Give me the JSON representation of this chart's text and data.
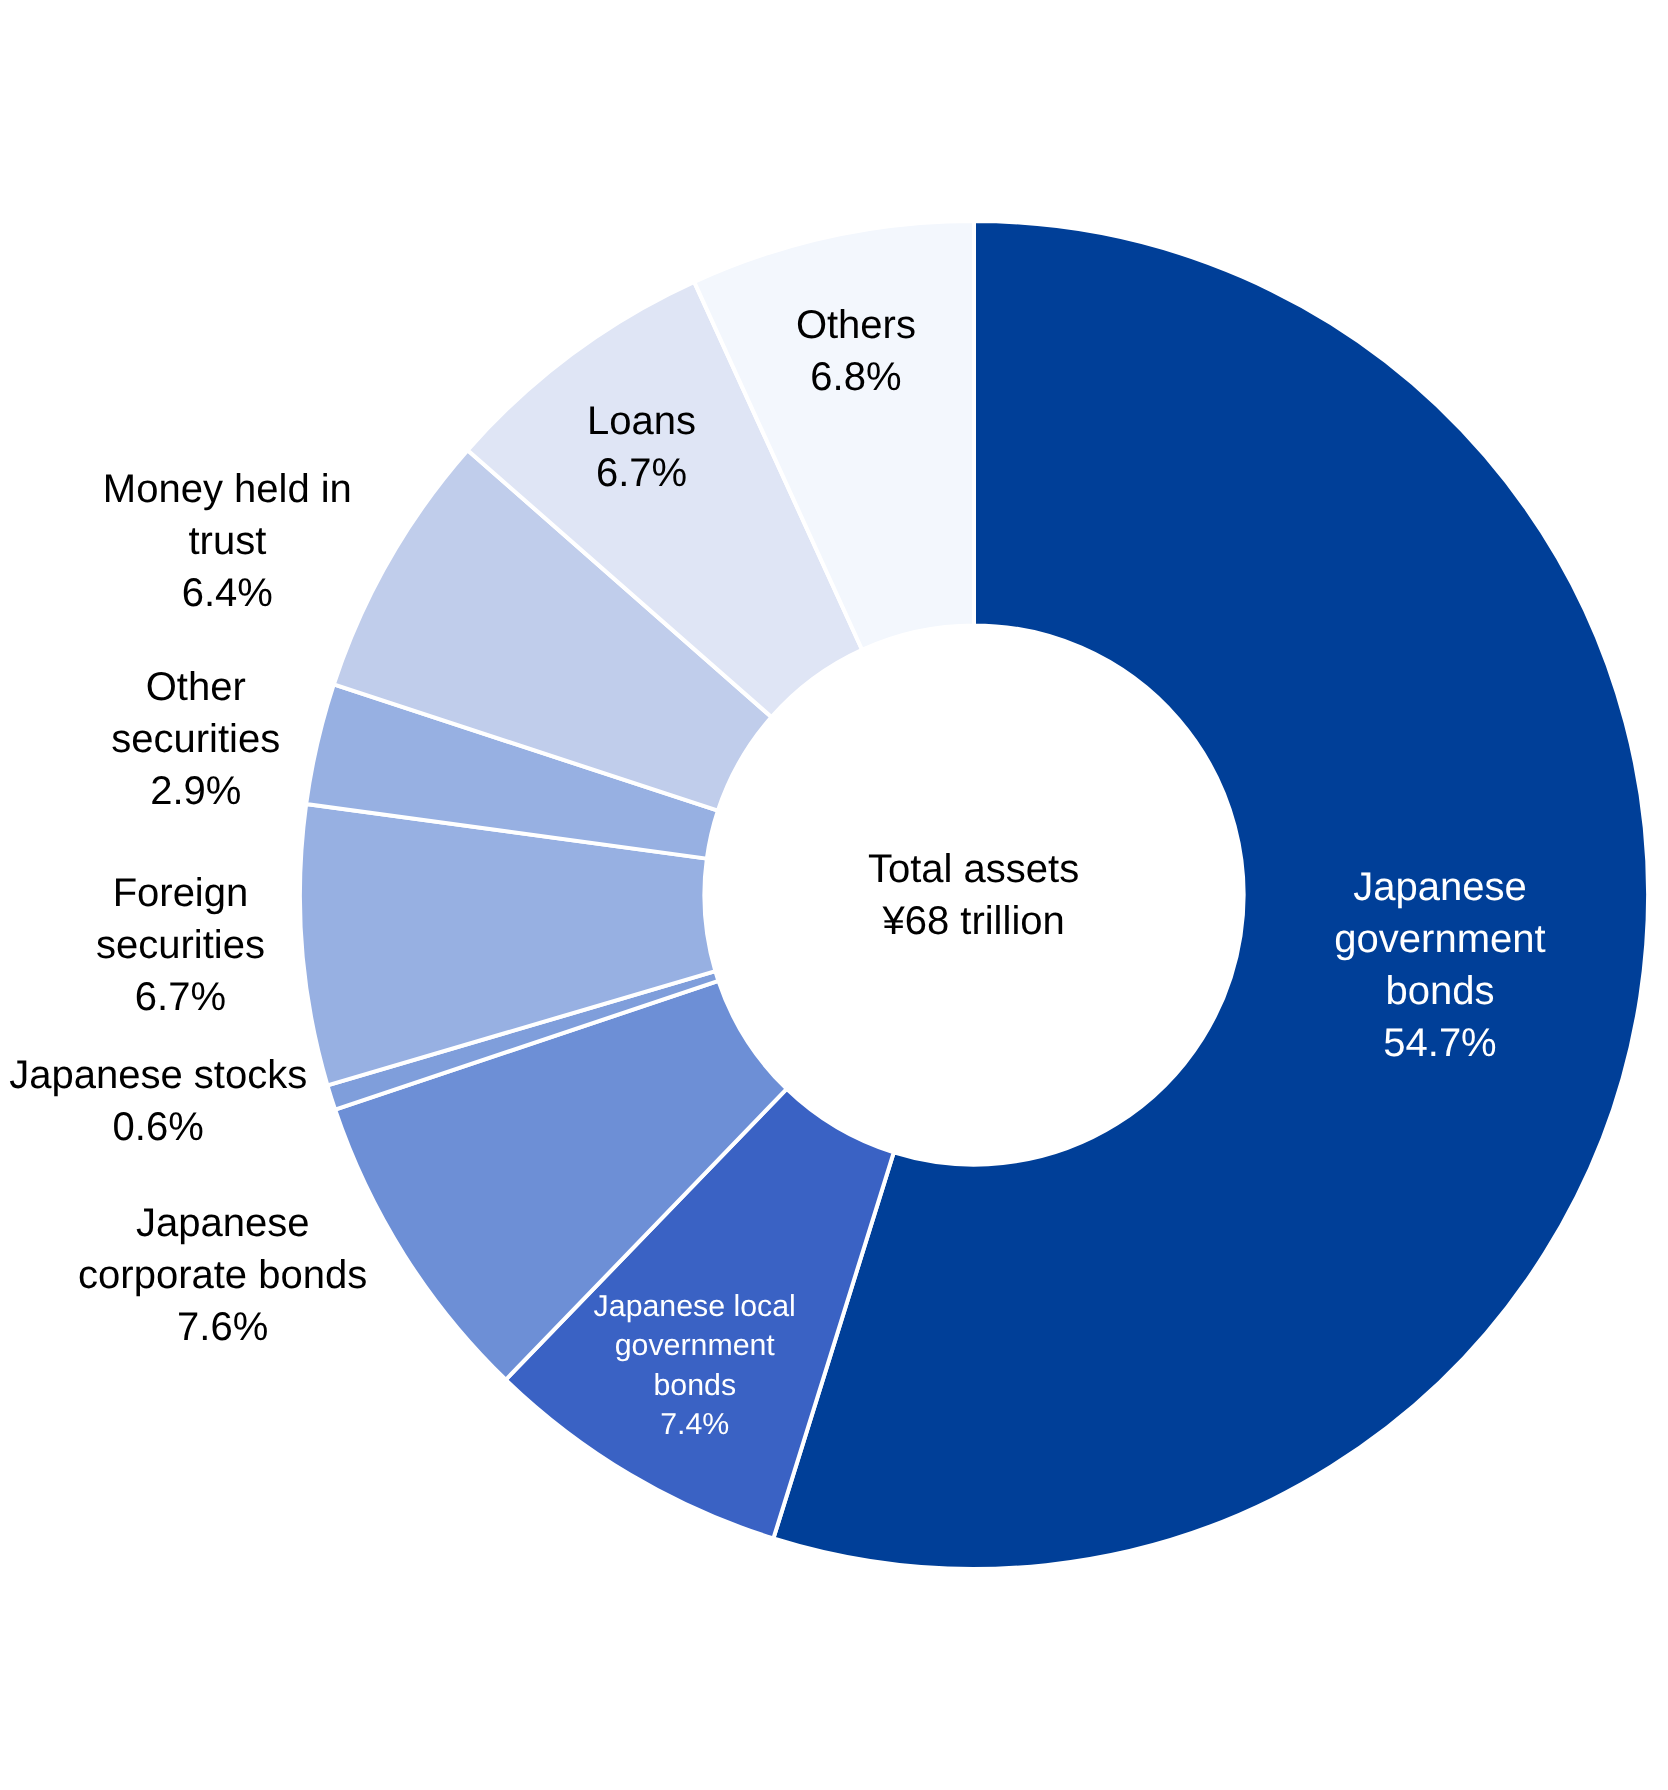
{
  "chart_data": {
    "type": "donut",
    "categories": [
      "Japanese government bonds",
      "Japanese local government bonds",
      "Japanese corporate bonds",
      "Japanese stocks",
      "Foreign securities",
      "Other securities",
      "Money held in trust",
      "Loans",
      "Others"
    ],
    "values": [
      54.7,
      7.4,
      7.6,
      0.6,
      6.7,
      2.9,
      6.4,
      6.7,
      6.8
    ],
    "value_labels": [
      "54.7%",
      "7.4%",
      "7.6%",
      "0.6%",
      "6.7%",
      "2.9%",
      "6.4%",
      "6.7%",
      "6.8%"
    ],
    "colors": [
      "#003f98",
      "#3a62c4",
      "#6d8fd6",
      "#7f9edb",
      "#97b0e2",
      "#97b0e2",
      "#c0cdeb",
      "#dfe5f5",
      "#f3f7fd"
    ],
    "annotations": [
      "Total assets\n¥68 trillion"
    ],
    "legend": false
  }
}
